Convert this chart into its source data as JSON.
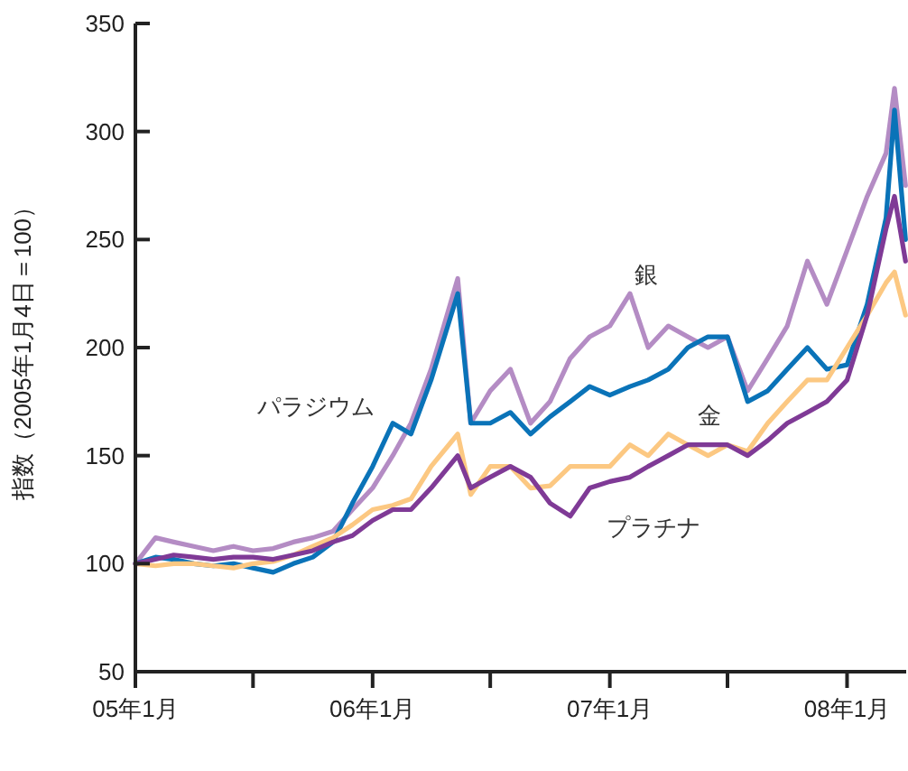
{
  "chart_data": {
    "type": "line",
    "ylabel": "指数（2005年1月4日＝100）",
    "x": [
      "2005-01",
      "2005-02",
      "2005-03",
      "2005-04",
      "2005-05",
      "2005-06",
      "2005-07",
      "2005-08",
      "2005-09",
      "2005-10",
      "2005-11",
      "2005-12",
      "2006-01",
      "2006-02",
      "2006-03",
      "2006-04",
      "2006-05-12",
      "2006-06",
      "2006-07",
      "2006-08",
      "2006-09",
      "2006-10",
      "2006-11",
      "2006-12",
      "2007-01",
      "2007-02",
      "2007-03",
      "2007-04",
      "2007-05",
      "2007-06",
      "2007-07",
      "2007-08",
      "2007-09",
      "2007-10",
      "2007-11",
      "2007-12",
      "2008-01",
      "2008-02",
      "2008-03",
      "2008-03-14",
      "2008-03-31"
    ],
    "xlim": [
      "2005-01-01",
      "2008-04-01"
    ],
    "xticks": [
      {
        "value": "2005-01",
        "label": "05年1月"
      },
      {
        "value": "2005-07",
        "label": null
      },
      {
        "value": "2006-01",
        "label": "06年1月"
      },
      {
        "value": "2006-07",
        "label": null
      },
      {
        "value": "2007-01",
        "label": "07年1月"
      },
      {
        "value": "2007-07",
        "label": null
      },
      {
        "value": "2008-01",
        "label": "08年1月"
      }
    ],
    "ylim": [
      50,
      350
    ],
    "yticks": [
      50,
      100,
      150,
      200,
      250,
      300,
      350
    ],
    "series": [
      {
        "name": "銀",
        "color": "#b48cc4",
        "values": [
          100,
          112,
          110,
          108,
          106,
          108,
          106,
          107,
          110,
          112,
          115,
          125,
          135,
          150,
          165,
          190,
          232,
          165,
          180,
          190,
          165,
          175,
          195,
          205,
          210,
          225,
          200,
          210,
          205,
          200,
          205,
          180,
          195,
          210,
          240,
          220,
          245,
          270,
          290,
          320,
          275
        ]
      },
      {
        "name": "パラジウム",
        "color": "#0a73b8",
        "values": [
          100,
          103,
          102,
          100,
          99,
          100,
          98,
          96,
          100,
          103,
          110,
          128,
          145,
          165,
          160,
          185,
          225,
          165,
          165,
          170,
          160,
          168,
          175,
          182,
          178,
          182,
          185,
          190,
          200,
          205,
          205,
          175,
          180,
          190,
          200,
          190,
          192,
          220,
          260,
          310,
          250
        ]
      },
      {
        "name": "金",
        "color": "#fcc882",
        "values": [
          100,
          99,
          100,
          100,
          99,
          98,
          100,
          101,
          104,
          108,
          112,
          118,
          125,
          127,
          130,
          145,
          160,
          132,
          145,
          145,
          135,
          136,
          145,
          145,
          145,
          155,
          150,
          160,
          155,
          150,
          155,
          152,
          165,
          175,
          185,
          185,
          200,
          215,
          230,
          235,
          215
        ]
      },
      {
        "name": "プラチナ",
        "color": "#7f3a96",
        "values": [
          100,
          102,
          104,
          103,
          102,
          103,
          103,
          102,
          104,
          106,
          110,
          113,
          120,
          125,
          125,
          135,
          150,
          135,
          140,
          145,
          140,
          128,
          122,
          135,
          138,
          140,
          145,
          150,
          155,
          155,
          155,
          150,
          157,
          165,
          170,
          175,
          185,
          215,
          255,
          270,
          240
        ]
      }
    ]
  }
}
